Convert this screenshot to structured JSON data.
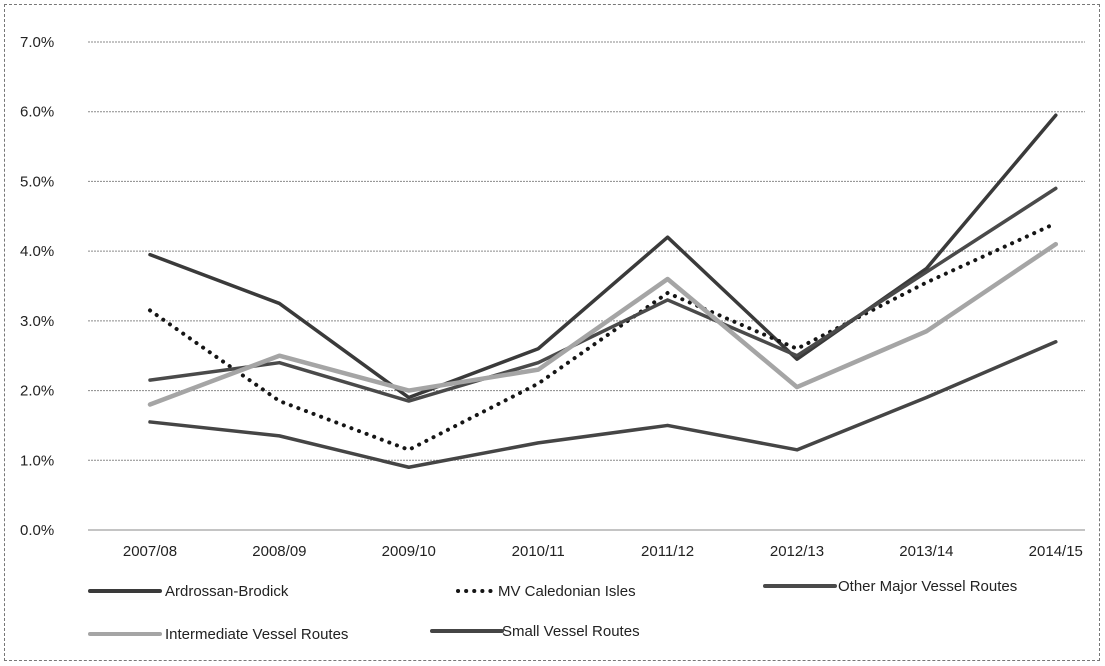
{
  "chart_data": {
    "type": "line",
    "title": "",
    "xlabel": "",
    "ylabel": "",
    "categories": [
      "2007/08",
      "2008/09",
      "2009/10",
      "2010/11",
      "2011/12",
      "2012/13",
      "2013/14",
      "2014/15"
    ],
    "ylim": [
      0,
      7
    ],
    "yticks": [
      "0.0%",
      "1.0%",
      "2.0%",
      "3.0%",
      "4.0%",
      "5.0%",
      "6.0%",
      "7.0%"
    ],
    "grid": true,
    "legend_position": "bottom",
    "series": [
      {
        "name": "Ardrossan-Brodick",
        "values": [
          3.95,
          3.25,
          1.9,
          2.6,
          4.2,
          2.45,
          3.75,
          5.95
        ],
        "color": "#3a3a3a",
        "style": "solid"
      },
      {
        "name": "MV Caledonian Isles",
        "values": [
          3.15,
          1.85,
          1.15,
          2.1,
          3.4,
          2.6,
          3.55,
          4.4
        ],
        "color": "#151515",
        "style": "dotted"
      },
      {
        "name": "Other Major Vessel Routes",
        "values": [
          2.15,
          2.4,
          1.85,
          2.4,
          3.3,
          2.5,
          3.7,
          4.9
        ],
        "color": "#4a4a4a",
        "style": "solid"
      },
      {
        "name": "Intermediate  Vessel Routes",
        "values": [
          1.8,
          2.5,
          2.0,
          2.3,
          3.6,
          2.05,
          2.85,
          4.1
        ],
        "color": "#a5a5a5",
        "style": "solid"
      },
      {
        "name": "Small Vessel Routes",
        "values": [
          1.55,
          1.35,
          0.9,
          1.25,
          1.5,
          1.15,
          1.9,
          2.7
        ],
        "color": "#454545",
        "style": "solid"
      }
    ]
  }
}
